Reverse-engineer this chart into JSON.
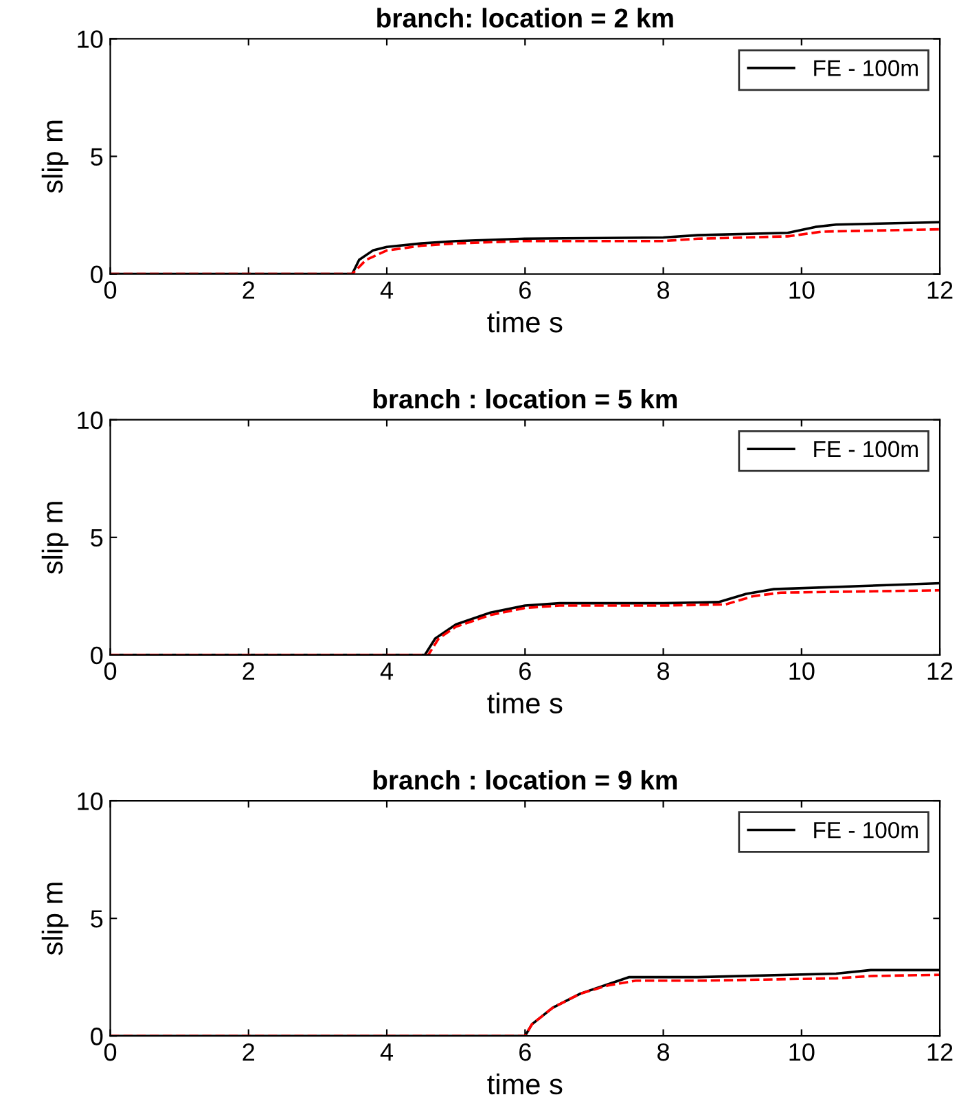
{
  "chart_data": [
    {
      "type": "line",
      "title": "branch: location = 2 km",
      "xlabel": "time s",
      "ylabel": "slip m",
      "xlim": [
        0,
        12
      ],
      "ylim": [
        0,
        10
      ],
      "xticks": [
        0,
        2,
        4,
        6,
        8,
        10,
        12
      ],
      "yticks": [
        0,
        5,
        10
      ],
      "grid": false,
      "legend": "top right",
      "series": [
        {
          "name": "FE - 100m",
          "color": "#000000",
          "line_style": "solid",
          "x": [
            0,
            3.5,
            3.6,
            3.8,
            4.0,
            4.5,
            5,
            6,
            8,
            8.5,
            9.8,
            10.2,
            10.5,
            12
          ],
          "values": [
            0,
            0,
            0.6,
            1.0,
            1.15,
            1.3,
            1.4,
            1.5,
            1.55,
            1.65,
            1.75,
            2.0,
            2.1,
            2.2
          ]
        },
        {
          "color": "#ff0000",
          "line_style": "dashed",
          "x": [
            0,
            3.5,
            3.7,
            4.0,
            4.5,
            5,
            6,
            8,
            8.5,
            9.8,
            10.3,
            12
          ],
          "values": [
            0,
            0,
            0.6,
            1.0,
            1.2,
            1.3,
            1.4,
            1.4,
            1.5,
            1.6,
            1.8,
            1.9
          ]
        }
      ]
    },
    {
      "type": "line",
      "title": "branch : location = 5 km",
      "xlabel": "time s",
      "ylabel": "slip m",
      "xlim": [
        0,
        12
      ],
      "ylim": [
        0,
        10
      ],
      "xticks": [
        0,
        2,
        4,
        6,
        8,
        10,
        12
      ],
      "yticks": [
        0,
        5,
        10
      ],
      "grid": false,
      "legend": "top right",
      "series": [
        {
          "name": "FE - 100m",
          "color": "#000000",
          "line_style": "solid",
          "x": [
            0,
            4.55,
            4.7,
            5,
            5.5,
            6,
            6.5,
            8,
            8.8,
            9.2,
            9.6,
            12
          ],
          "values": [
            0,
            0,
            0.7,
            1.3,
            1.8,
            2.1,
            2.2,
            2.2,
            2.25,
            2.6,
            2.8,
            3.05
          ]
        },
        {
          "color": "#ff0000",
          "line_style": "dashed",
          "x": [
            0,
            4.6,
            4.75,
            5,
            5.5,
            6,
            6.5,
            8,
            8.9,
            9.3,
            9.7,
            12
          ],
          "values": [
            0,
            0,
            0.7,
            1.2,
            1.7,
            2.0,
            2.1,
            2.1,
            2.15,
            2.5,
            2.65,
            2.75
          ]
        }
      ]
    },
    {
      "type": "line",
      "title": "branch : location = 9 km",
      "xlabel": "time s",
      "ylabel": "slip m",
      "xlim": [
        0,
        12
      ],
      "ylim": [
        0,
        10
      ],
      "xticks": [
        0,
        2,
        4,
        6,
        8,
        10,
        12
      ],
      "yticks": [
        0,
        5,
        10
      ],
      "grid": false,
      "legend": "top right",
      "series": [
        {
          "name": "FE - 100m",
          "color": "#000000",
          "line_style": "solid",
          "x": [
            0,
            6.0,
            6.1,
            6.4,
            6.8,
            7.2,
            7.5,
            8.5,
            10.5,
            11,
            12
          ],
          "values": [
            0,
            0,
            0.5,
            1.2,
            1.8,
            2.2,
            2.5,
            2.5,
            2.65,
            2.8,
            2.8
          ]
        },
        {
          "color": "#ff0000",
          "line_style": "dashed",
          "x": [
            0,
            6.0,
            6.1,
            6.4,
            6.8,
            7.2,
            7.6,
            8.5,
            10.5,
            11,
            12
          ],
          "values": [
            0,
            0,
            0.5,
            1.2,
            1.8,
            2.15,
            2.35,
            2.35,
            2.45,
            2.55,
            2.6
          ]
        }
      ]
    }
  ]
}
